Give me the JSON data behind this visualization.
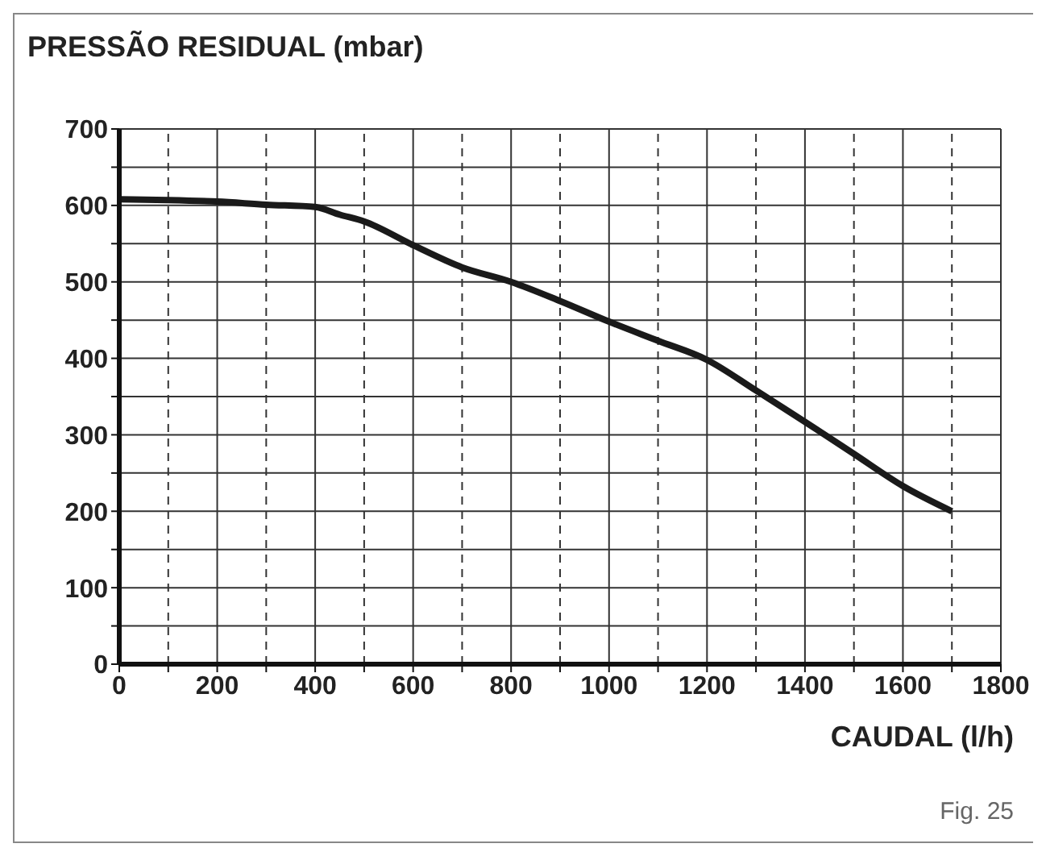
{
  "chart_data": {
    "type": "line",
    "title": "PRESSÃO RESIDUAL (mbar)",
    "xlabel": "CAUDAL (l/h)",
    "annotations": [
      "Fig. 25"
    ],
    "x": [
      0,
      100,
      200,
      300,
      400,
      450,
      500,
      600,
      700,
      800,
      900,
      1000,
      1100,
      1200,
      1300,
      1400,
      1500,
      1600,
      1700
    ],
    "series": [
      {
        "color": "#1a1a1a",
        "values": [
          608,
          607,
          605,
          601,
          598,
          588,
          579,
          548,
          519,
          500,
          475,
          448,
          423,
          398,
          358,
          317,
          275,
          233,
          200
        ]
      }
    ],
    "xlim": [
      0,
      1800
    ],
    "xticks": [
      0,
      {
        "value": 100,
        "label": null
      },
      200,
      {
        "value": 300,
        "label": null
      },
      400,
      {
        "value": 500,
        "label": null
      },
      600,
      {
        "value": 700,
        "label": null
      },
      800,
      {
        "value": 900,
        "label": null
      },
      1000,
      {
        "value": 1100,
        "label": null
      },
      1200,
      {
        "value": 1300,
        "label": null
      },
      1400,
      {
        "value": 1500,
        "label": null
      },
      1600,
      {
        "value": 1700,
        "label": null
      },
      1800
    ],
    "ylim": [
      0,
      700
    ],
    "yticks": [
      0,
      {
        "value": 50,
        "label": null
      },
      100,
      {
        "value": 150,
        "label": null
      },
      200,
      {
        "value": 250,
        "label": null
      },
      300,
      {
        "value": 350,
        "label": null
      },
      400,
      {
        "value": 450,
        "label": null
      },
      500,
      {
        "value": 550,
        "label": null
      },
      600,
      {
        "value": 650,
        "label": null
      },
      700
    ],
    "grid": true,
    "marker": "none",
    "line_style": "solid"
  }
}
